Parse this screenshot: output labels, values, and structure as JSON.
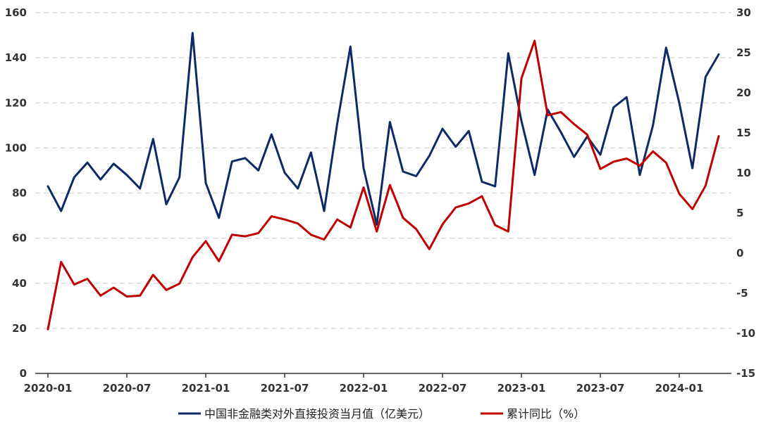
{
  "chart_data": {
    "type": "line",
    "x": [
      "2020-01",
      "2020-02",
      "2020-03",
      "2020-04",
      "2020-05",
      "2020-06",
      "2020-07",
      "2020-08",
      "2020-09",
      "2020-10",
      "2020-11",
      "2020-12",
      "2021-01",
      "2021-02",
      "2021-03",
      "2021-04",
      "2021-05",
      "2021-06",
      "2021-07",
      "2021-08",
      "2021-09",
      "2021-10",
      "2021-11",
      "2021-12",
      "2022-01",
      "2022-02",
      "2022-03",
      "2022-04",
      "2022-05",
      "2022-06",
      "2022-07",
      "2022-08",
      "2022-09",
      "2022-10",
      "2022-11",
      "2022-12",
      "2023-01",
      "2023-02",
      "2023-03",
      "2023-04",
      "2023-05",
      "2023-06",
      "2023-07",
      "2023-08",
      "2023-09",
      "2023-10",
      "2023-11",
      "2023-12",
      "2024-01",
      "2024-02",
      "2024-03",
      "2024-04"
    ],
    "x_tick_labels": [
      "2020-01",
      "2020-07",
      "2021-01",
      "2021-07",
      "2022-01",
      "2022-07",
      "2023-01",
      "2023-07",
      "2024-01"
    ],
    "left_axis": {
      "ylim": [
        0,
        160
      ],
      "ticks": [
        "0",
        "20",
        "40",
        "60",
        "80",
        "100",
        "120",
        "140",
        "160"
      ]
    },
    "right_axis": {
      "ylim": [
        -15,
        30
      ],
      "ticks": [
        "-15",
        "-10",
        "-5",
        "0",
        "5",
        "10",
        "15",
        "20",
        "25",
        "30"
      ]
    },
    "grid": "horizontal dashed",
    "legend_position": "bottom",
    "series": [
      {
        "name": "中国非金融类对外直接投资当月值（亿美元）",
        "axis": "left",
        "color": "#0d2a66",
        "values": [
          83,
          72,
          87,
          93.5,
          86,
          93,
          88,
          82,
          104,
          75,
          87,
          151,
          84.5,
          69,
          94,
          95.5,
          90,
          106,
          89,
          82,
          98,
          72,
          111,
          145,
          91,
          66,
          111.5,
          89.5,
          87.5,
          96.5,
          108.5,
          100.5,
          107.5,
          85,
          83,
          142,
          112,
          88,
          117,
          107,
          96,
          105,
          97,
          118,
          122.5,
          88,
          110,
          144.5,
          120,
          91,
          131.5,
          141.5
        ]
      },
      {
        "name": "累计同比（%）",
        "axis": "right",
        "color": "#c00000",
        "values": [
          -9.5,
          -1.1,
          -3.9,
          -3.2,
          -5.3,
          -4.3,
          -5.4,
          -5.3,
          -2.7,
          -4.6,
          -3.8,
          -0.5,
          1.5,
          -1.0,
          2.3,
          2.1,
          2.5,
          4.6,
          4.2,
          3.7,
          2.3,
          1.7,
          4.2,
          3.2,
          8.2,
          2.7,
          8.5,
          4.4,
          3.0,
          0.5,
          3.6,
          5.7,
          6.2,
          7.1,
          3.5,
          2.7,
          21.8,
          26.5,
          17.2,
          17.6,
          16.1,
          14.8,
          10.5,
          11.4,
          11.8,
          10.9,
          12.7,
          11.3,
          7.4,
          5.5,
          8.4,
          14.6
        ]
      }
    ]
  }
}
